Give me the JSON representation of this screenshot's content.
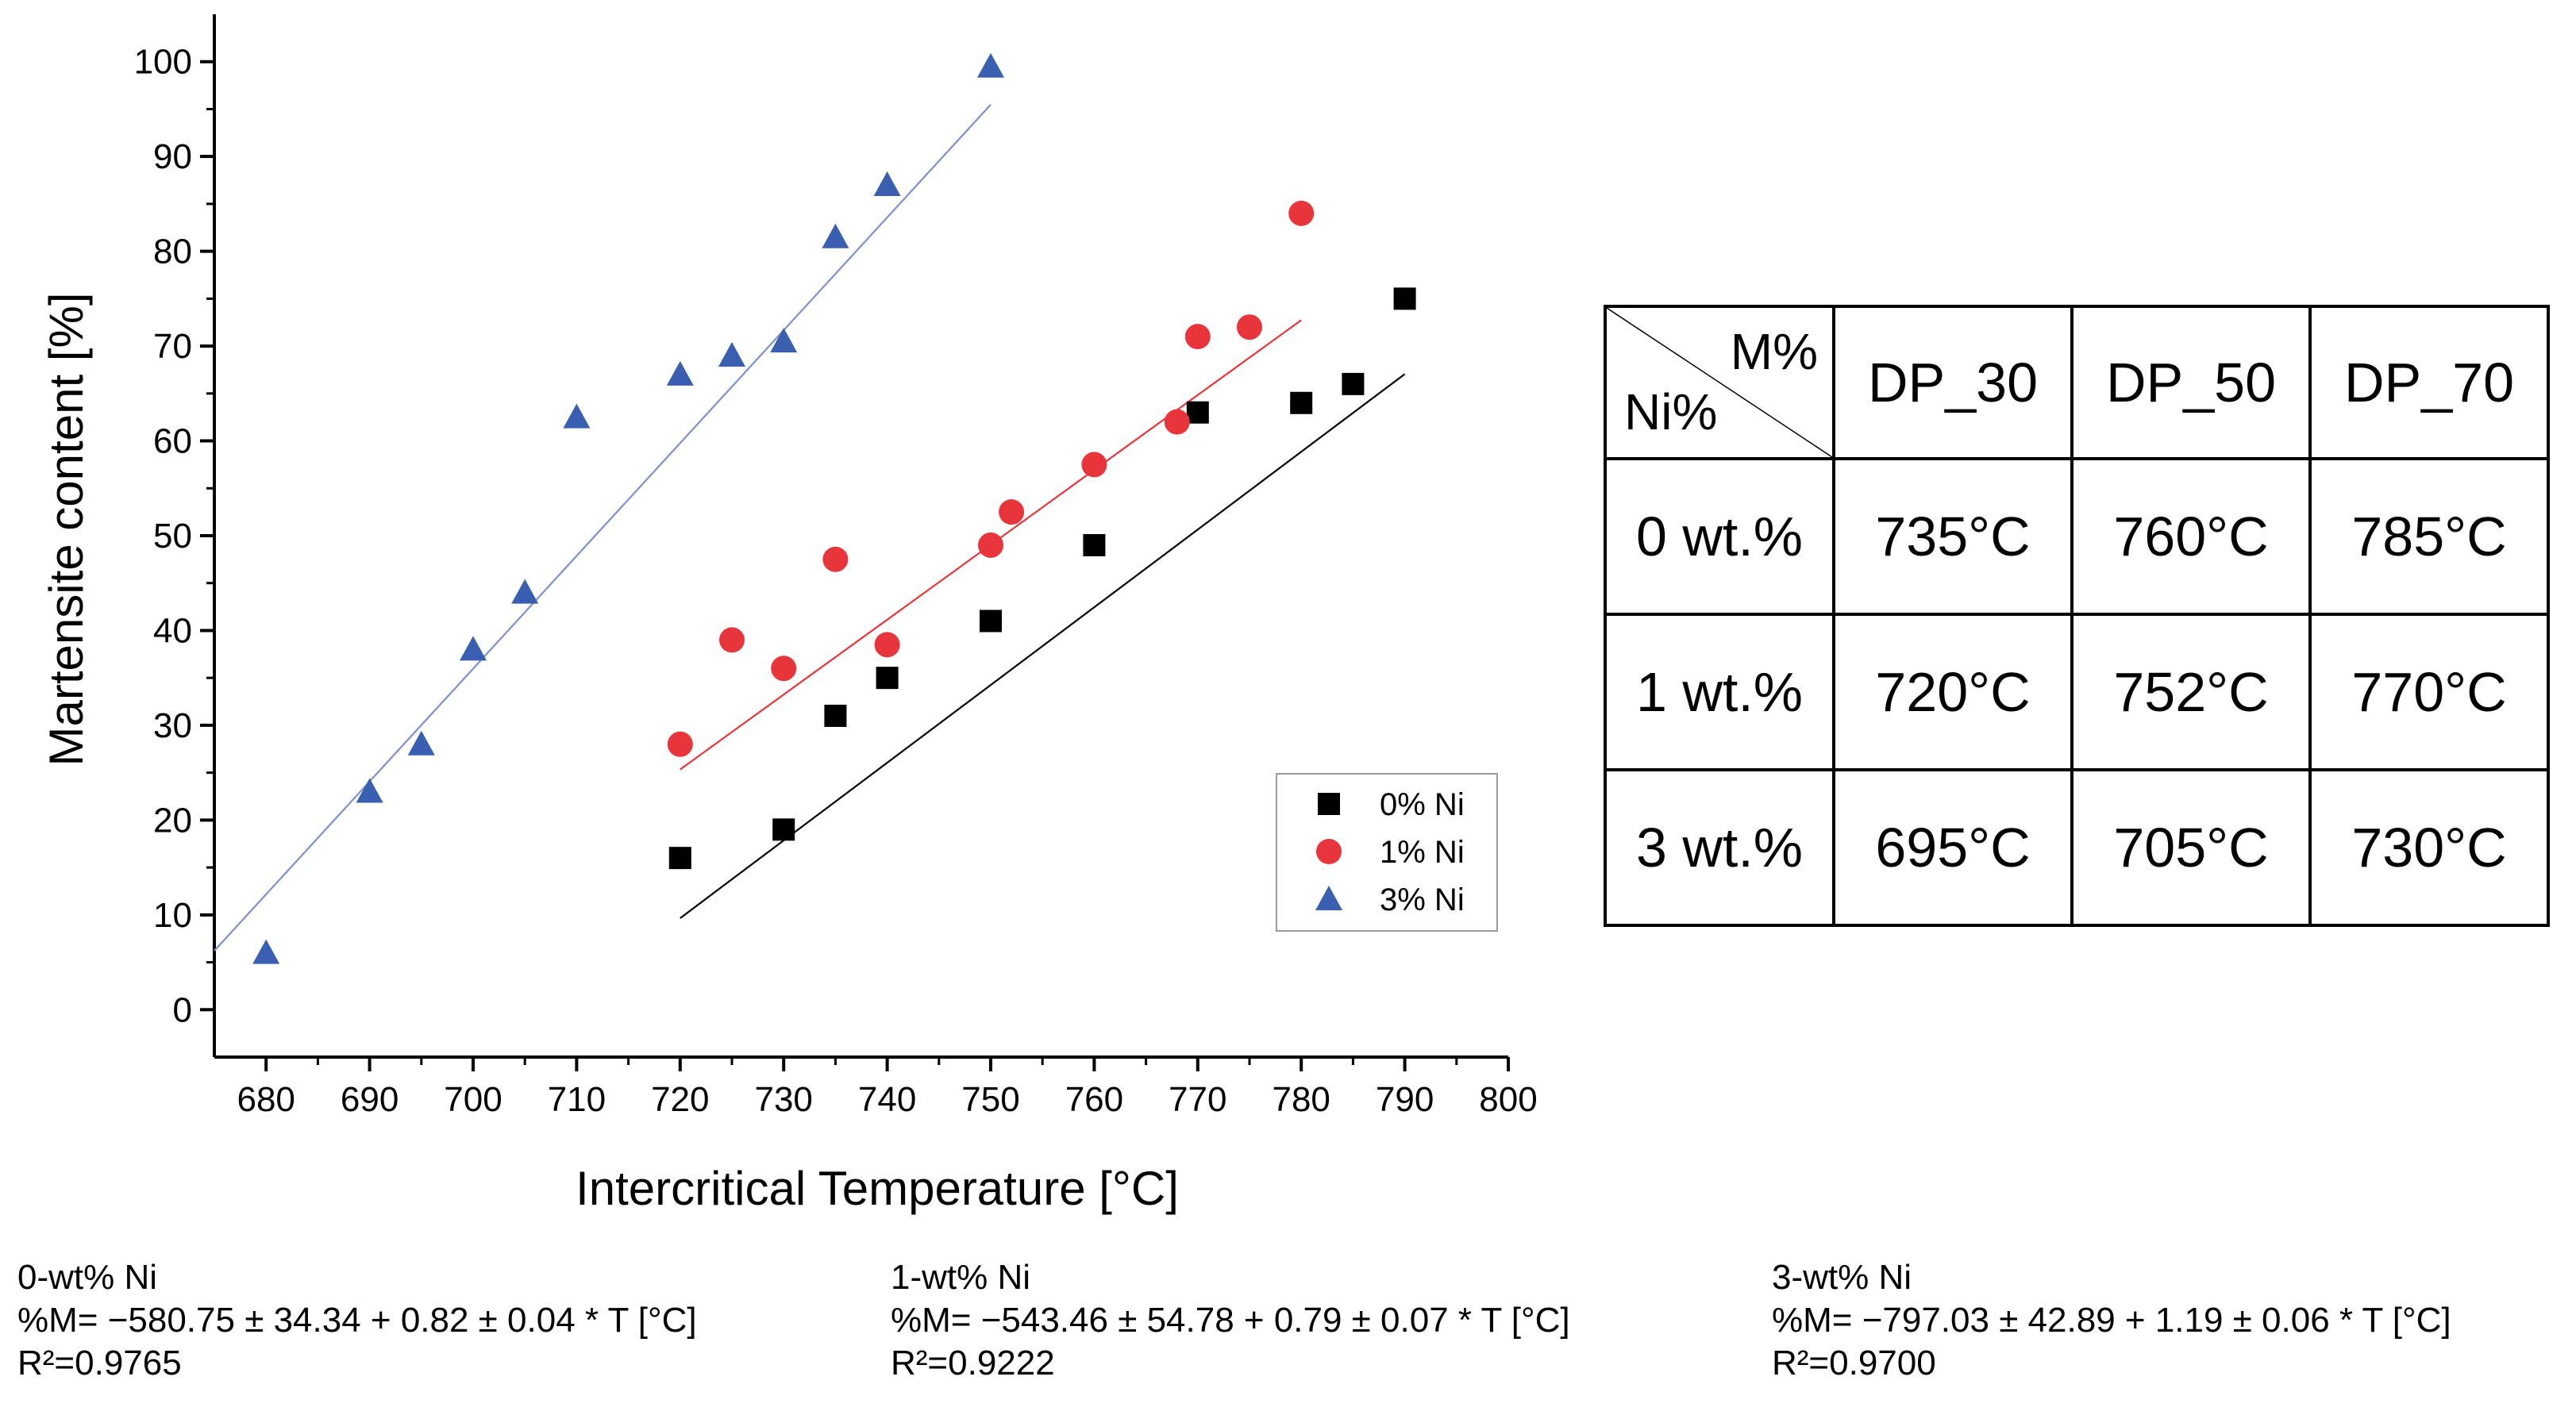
{
  "chart_data": {
    "type": "scatter",
    "xlabel": "Intercritical Temperature [°C]",
    "ylabel": "Martensite content [%]",
    "xlim": [
      675,
      800
    ],
    "ylim": [
      -5,
      105
    ],
    "x_ticks": [
      680,
      690,
      700,
      710,
      720,
      730,
      740,
      750,
      760,
      770,
      780,
      790,
      800
    ],
    "y_ticks": [
      0,
      10,
      20,
      30,
      40,
      50,
      60,
      70,
      80,
      90,
      100
    ],
    "legend_position": "bottom-right",
    "series": [
      {
        "name": "0% Ni",
        "marker": "square",
        "color": "#000000",
        "line_color": "#000000",
        "points": [
          [
            720,
            16
          ],
          [
            730,
            19
          ],
          [
            735,
            31
          ],
          [
            740,
            35
          ],
          [
            750,
            41
          ],
          [
            760,
            49
          ],
          [
            770,
            63
          ],
          [
            780,
            64
          ],
          [
            785,
            66
          ],
          [
            790,
            75
          ]
        ],
        "fit": {
          "intercept": -580.75,
          "slope": 0.82,
          "x_range": [
            720,
            790
          ]
        }
      },
      {
        "name": "1% Ni",
        "marker": "circle",
        "color": "#e8353b",
        "line_color": "#e8353b",
        "points": [
          [
            720,
            28
          ],
          [
            725,
            39
          ],
          [
            730,
            36
          ],
          [
            735,
            47.5
          ],
          [
            740,
            38.5
          ],
          [
            750,
            49
          ],
          [
            752,
            52.5
          ],
          [
            760,
            57.5
          ],
          [
            768,
            62
          ],
          [
            770,
            71
          ],
          [
            775,
            72
          ],
          [
            780,
            84
          ]
        ],
        "fit": {
          "intercept": -543.46,
          "slope": 0.79,
          "x_range": [
            720,
            780
          ]
        }
      },
      {
        "name": "3% Ni",
        "marker": "triangle",
        "color": "#3a5fb0",
        "line_color": "#7f8fcf",
        "points": [
          [
            680,
            6
          ],
          [
            690,
            23
          ],
          [
            695,
            28
          ],
          [
            700,
            38
          ],
          [
            705,
            44
          ],
          [
            710,
            62.5
          ],
          [
            720,
            67
          ],
          [
            725,
            69
          ],
          [
            730,
            70.5
          ],
          [
            735,
            81.5
          ],
          [
            740,
            87
          ],
          [
            750,
            99.5
          ]
        ],
        "fit": {
          "intercept": -797.03,
          "slope": 1.19,
          "x_range": [
            675,
            750
          ]
        }
      }
    ]
  },
  "table": {
    "corner_top": "M%",
    "corner_bottom": "Ni%",
    "columns": [
      "DP_30",
      "DP_50",
      "DP_70"
    ],
    "rows": [
      {
        "label": "0 wt.%",
        "values": [
          "735°C",
          "760°C",
          "785°C"
        ]
      },
      {
        "label": "1 wt.%",
        "values": [
          "720°C",
          "752°C",
          "770°C"
        ]
      },
      {
        "label": "3 wt.%",
        "values": [
          "695°C",
          "705°C",
          "730°C"
        ]
      }
    ]
  },
  "equations": [
    {
      "title": "0-wt% Ni",
      "formula": "%M= −580.75 ± 34.34 + 0.82 ± 0.04 * T [°C]",
      "r2_label": "R²=",
      "r2_value": "0.9765"
    },
    {
      "title": "1-wt% Ni",
      "formula": "%M= −543.46 ± 54.78 + 0.79 ± 0.07 * T [°C]",
      "r2_label": "R²=",
      "r2_value": "0.9222"
    },
    {
      "title": "3-wt% Ni",
      "formula": "%M= −797.03 ± 42.89 + 1.19 ± 0.06 * T [°C]",
      "r2_label": "R²=",
      "r2_value": "0.9700"
    }
  ]
}
